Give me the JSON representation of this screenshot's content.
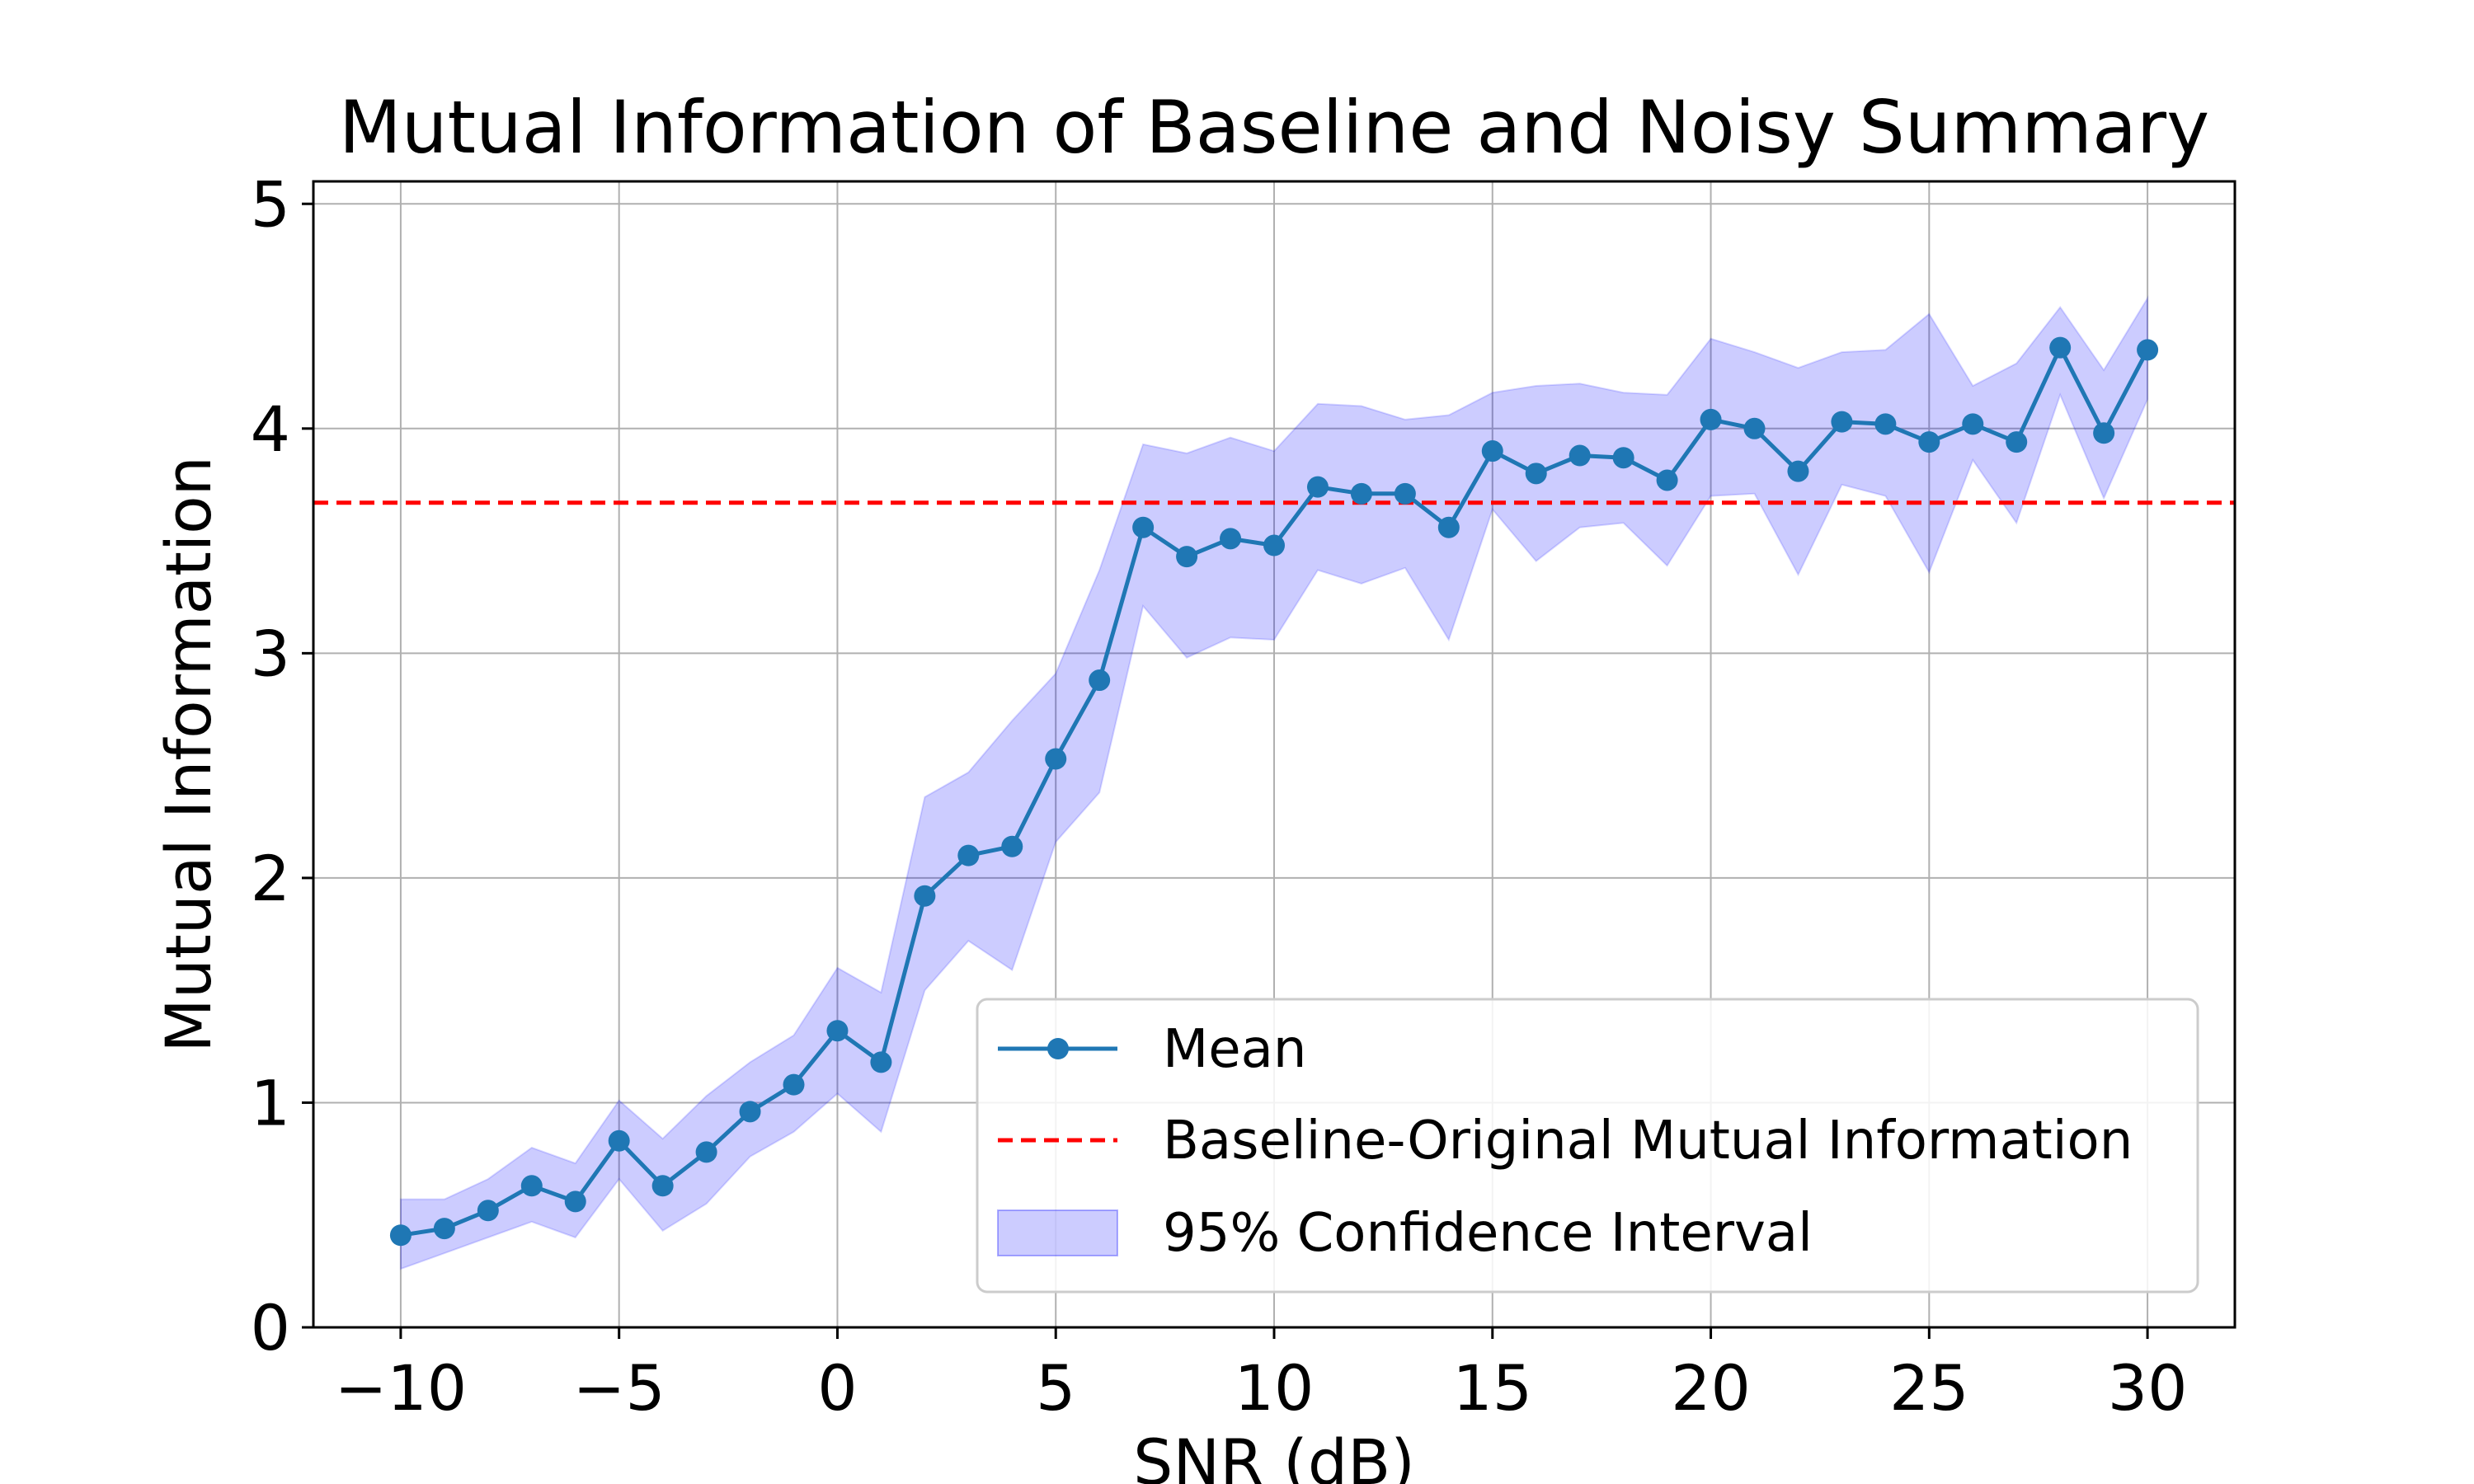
{
  "chart_data": {
    "type": "line",
    "title": "Mutual Information of Baseline and Noisy Summary",
    "xlabel": "SNR (dB)",
    "ylabel": "Mutual Information",
    "xlim": [
      -12,
      32
    ],
    "ylim": [
      0,
      5.1
    ],
    "xticks": [
      -10,
      -5,
      0,
      5,
      10,
      15,
      20,
      25,
      30
    ],
    "xtick_labels": [
      "−10",
      "−5",
      "0",
      "5",
      "10",
      "15",
      "20",
      "25",
      "30"
    ],
    "yticks": [
      0,
      1,
      2,
      3,
      4,
      5
    ],
    "ytick_labels": [
      "0",
      "1",
      "2",
      "3",
      "4",
      "5"
    ],
    "grid": true,
    "legend_position": "lower-right",
    "x": [
      -10,
      -9,
      -8,
      -7,
      -6,
      -5,
      -4,
      -3,
      -2,
      -1,
      0,
      1,
      2,
      3,
      4,
      5,
      6,
      7,
      8,
      9,
      10,
      11,
      12,
      13,
      14,
      15,
      16,
      17,
      18,
      19,
      20,
      21,
      22,
      23,
      24,
      25,
      26,
      27,
      28,
      29,
      30
    ],
    "series": [
      {
        "name": "Mean",
        "color": "#1f77b4",
        "marker": "circle",
        "values": [
          0.41,
          0.44,
          0.52,
          0.63,
          0.56,
          0.83,
          0.63,
          0.78,
          0.96,
          1.08,
          1.32,
          1.18,
          1.92,
          2.1,
          2.14,
          2.53,
          2.88,
          3.56,
          3.43,
          3.51,
          3.48,
          3.74,
          3.71,
          3.71,
          3.56,
          3.9,
          3.8,
          3.88,
          3.87,
          3.77,
          4.04,
          4.0,
          3.81,
          4.03,
          4.02,
          3.94,
          4.02,
          3.94,
          4.36,
          3.98,
          4.35
        ]
      },
      {
        "name": "Baseline-Original Mutual Information",
        "color": "#ff0000",
        "style": "dashed",
        "value": 3.67
      },
      {
        "name": "95% Confidence Interval",
        "color": "#0000ff",
        "fill_opacity": 0.2,
        "lower": [
          0.26,
          0.33,
          0.4,
          0.47,
          0.4,
          0.66,
          0.43,
          0.55,
          0.76,
          0.87,
          1.04,
          0.87,
          1.5,
          1.72,
          1.59,
          2.16,
          2.38,
          3.21,
          2.98,
          3.07,
          3.06,
          3.37,
          3.31,
          3.38,
          3.06,
          3.64,
          3.41,
          3.56,
          3.58,
          3.39,
          3.7,
          3.71,
          3.35,
          3.75,
          3.7,
          3.36,
          3.86,
          3.58,
          4.15,
          3.69,
          4.13
        ],
        "upper": [
          0.57,
          0.57,
          0.66,
          0.8,
          0.73,
          1.01,
          0.84,
          1.03,
          1.18,
          1.3,
          1.6,
          1.49,
          2.36,
          2.47,
          2.7,
          2.91,
          3.37,
          3.93,
          3.89,
          3.96,
          3.9,
          4.11,
          4.1,
          4.04,
          4.06,
          4.16,
          4.19,
          4.2,
          4.16,
          4.15,
          4.4,
          4.34,
          4.27,
          4.34,
          4.35,
          4.51,
          4.19,
          4.29,
          4.54,
          4.26,
          4.58
        ]
      }
    ]
  }
}
